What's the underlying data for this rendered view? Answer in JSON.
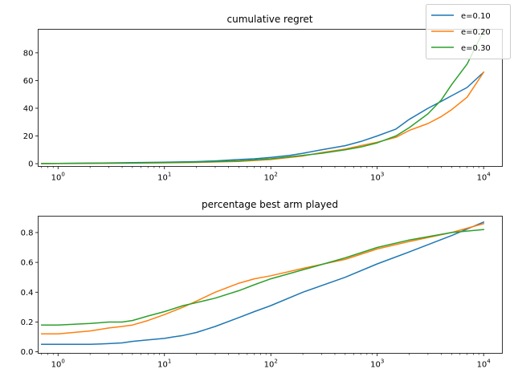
{
  "legend": {
    "location": "top-right",
    "entries": [
      {
        "name": "e=0.10",
        "color": "#1f77b4"
      },
      {
        "name": "e=0.20",
        "color": "#ff7f0e"
      },
      {
        "name": "e=0.30",
        "color": "#2ca02c"
      }
    ]
  },
  "chart_data": [
    {
      "type": "line",
      "title": "cumulative regret",
      "xlabel": "",
      "ylabel": "",
      "xscale": "log",
      "xlim": [
        0.65,
        15000
      ],
      "ylim": [
        -2,
        97
      ],
      "grid": false,
      "xticks": [
        {
          "value": 1,
          "base": "10",
          "exp": "0"
        },
        {
          "value": 10,
          "base": "10",
          "exp": "1"
        },
        {
          "value": 100,
          "base": "10",
          "exp": "2"
        },
        {
          "value": 1000,
          "base": "10",
          "exp": "3"
        },
        {
          "value": 10000,
          "base": "10",
          "exp": "4"
        }
      ],
      "yticks": [
        {
          "value": 0,
          "label": "0"
        },
        {
          "value": 20,
          "label": "20"
        },
        {
          "value": 40,
          "label": "40"
        },
        {
          "value": 60,
          "label": "60"
        },
        {
          "value": 80,
          "label": "80"
        }
      ],
      "series": [
        {
          "name": "e=0.10",
          "color": "#1f77b4",
          "x": [
            0.7,
            1,
            2,
            5,
            10,
            20,
            30,
            50,
            70,
            100,
            150,
            200,
            300,
            500,
            700,
            1000,
            1500,
            2000,
            3000,
            4000,
            5000,
            7000,
            10000
          ],
          "y": [
            0.1,
            0.2,
            0.4,
            0.7,
            1.0,
            1.5,
            2.0,
            3.0,
            3.5,
            4.5,
            6.0,
            7.5,
            10,
            13,
            16,
            20,
            25,
            32,
            40,
            45,
            49,
            55,
            66
          ]
        },
        {
          "name": "e=0.20",
          "color": "#ff7f0e",
          "x": [
            0.7,
            1,
            2,
            5,
            10,
            20,
            50,
            100,
            200,
            300,
            500,
            700,
            1000,
            1500,
            2000,
            3000,
            4000,
            5000,
            7000,
            10000
          ],
          "y": [
            0.0,
            0.1,
            0.2,
            0.4,
            0.6,
            0.9,
            1.6,
            3.0,
            5.5,
            8.0,
            10.5,
            13,
            15.5,
            19,
            24,
            29,
            34,
            39,
            48,
            66
          ]
        },
        {
          "name": "e=0.30",
          "color": "#2ca02c",
          "x": [
            0.7,
            1,
            2,
            5,
            10,
            20,
            50,
            100,
            200,
            300,
            500,
            700,
            1000,
            1500,
            2000,
            3000,
            4000,
            5000,
            7000,
            10000
          ],
          "y": [
            0.1,
            0.2,
            0.3,
            0.5,
            0.8,
            1.1,
            2.0,
            3.5,
            6.0,
            7.5,
            10,
            12,
            15,
            20,
            26,
            36,
            46,
            57,
            72,
            96
          ]
        }
      ]
    },
    {
      "type": "line",
      "title": "percentage best arm played",
      "xlabel": "",
      "ylabel": "",
      "xscale": "log",
      "xlim": [
        0.65,
        15000
      ],
      "ylim": [
        -0.01,
        0.91
      ],
      "grid": false,
      "xticks": [
        {
          "value": 1,
          "base": "10",
          "exp": "0"
        },
        {
          "value": 10,
          "base": "10",
          "exp": "1"
        },
        {
          "value": 100,
          "base": "10",
          "exp": "2"
        },
        {
          "value": 1000,
          "base": "10",
          "exp": "3"
        },
        {
          "value": 10000,
          "base": "10",
          "exp": "4"
        }
      ],
      "yticks": [
        {
          "value": 0.0,
          "label": "0.0"
        },
        {
          "value": 0.2,
          "label": "0.2"
        },
        {
          "value": 0.4,
          "label": "0.4"
        },
        {
          "value": 0.6,
          "label": "0.6"
        },
        {
          "value": 0.8,
          "label": "0.8"
        }
      ],
      "series": [
        {
          "name": "e=0.10",
          "color": "#1f77b4",
          "x": [
            0.7,
            1,
            2,
            3,
            4,
            5,
            7,
            10,
            12,
            15,
            20,
            30,
            50,
            70,
            100,
            200,
            500,
            1000,
            2000,
            5000,
            10000
          ],
          "y": [
            0.05,
            0.05,
            0.05,
            0.055,
            0.06,
            0.07,
            0.08,
            0.09,
            0.1,
            0.11,
            0.13,
            0.17,
            0.23,
            0.27,
            0.31,
            0.4,
            0.5,
            0.59,
            0.67,
            0.78,
            0.87
          ]
        },
        {
          "name": "e=0.20",
          "color": "#ff7f0e",
          "x": [
            0.7,
            1,
            2,
            3,
            4,
            5,
            7,
            10,
            15,
            20,
            30,
            50,
            70,
            100,
            200,
            500,
            1000,
            2000,
            5000,
            10000
          ],
          "y": [
            0.12,
            0.12,
            0.14,
            0.16,
            0.17,
            0.18,
            0.21,
            0.25,
            0.3,
            0.34,
            0.4,
            0.46,
            0.49,
            0.51,
            0.56,
            0.62,
            0.69,
            0.74,
            0.8,
            0.86
          ]
        },
        {
          "name": "e=0.30",
          "color": "#2ca02c",
          "x": [
            0.7,
            1,
            2,
            3,
            4,
            5,
            7,
            10,
            15,
            20,
            30,
            50,
            70,
            100,
            200,
            500,
            1000,
            2000,
            5000,
            10000
          ],
          "y": [
            0.18,
            0.18,
            0.19,
            0.2,
            0.2,
            0.21,
            0.24,
            0.27,
            0.31,
            0.33,
            0.36,
            0.41,
            0.45,
            0.49,
            0.55,
            0.63,
            0.7,
            0.75,
            0.8,
            0.82
          ]
        }
      ]
    }
  ]
}
